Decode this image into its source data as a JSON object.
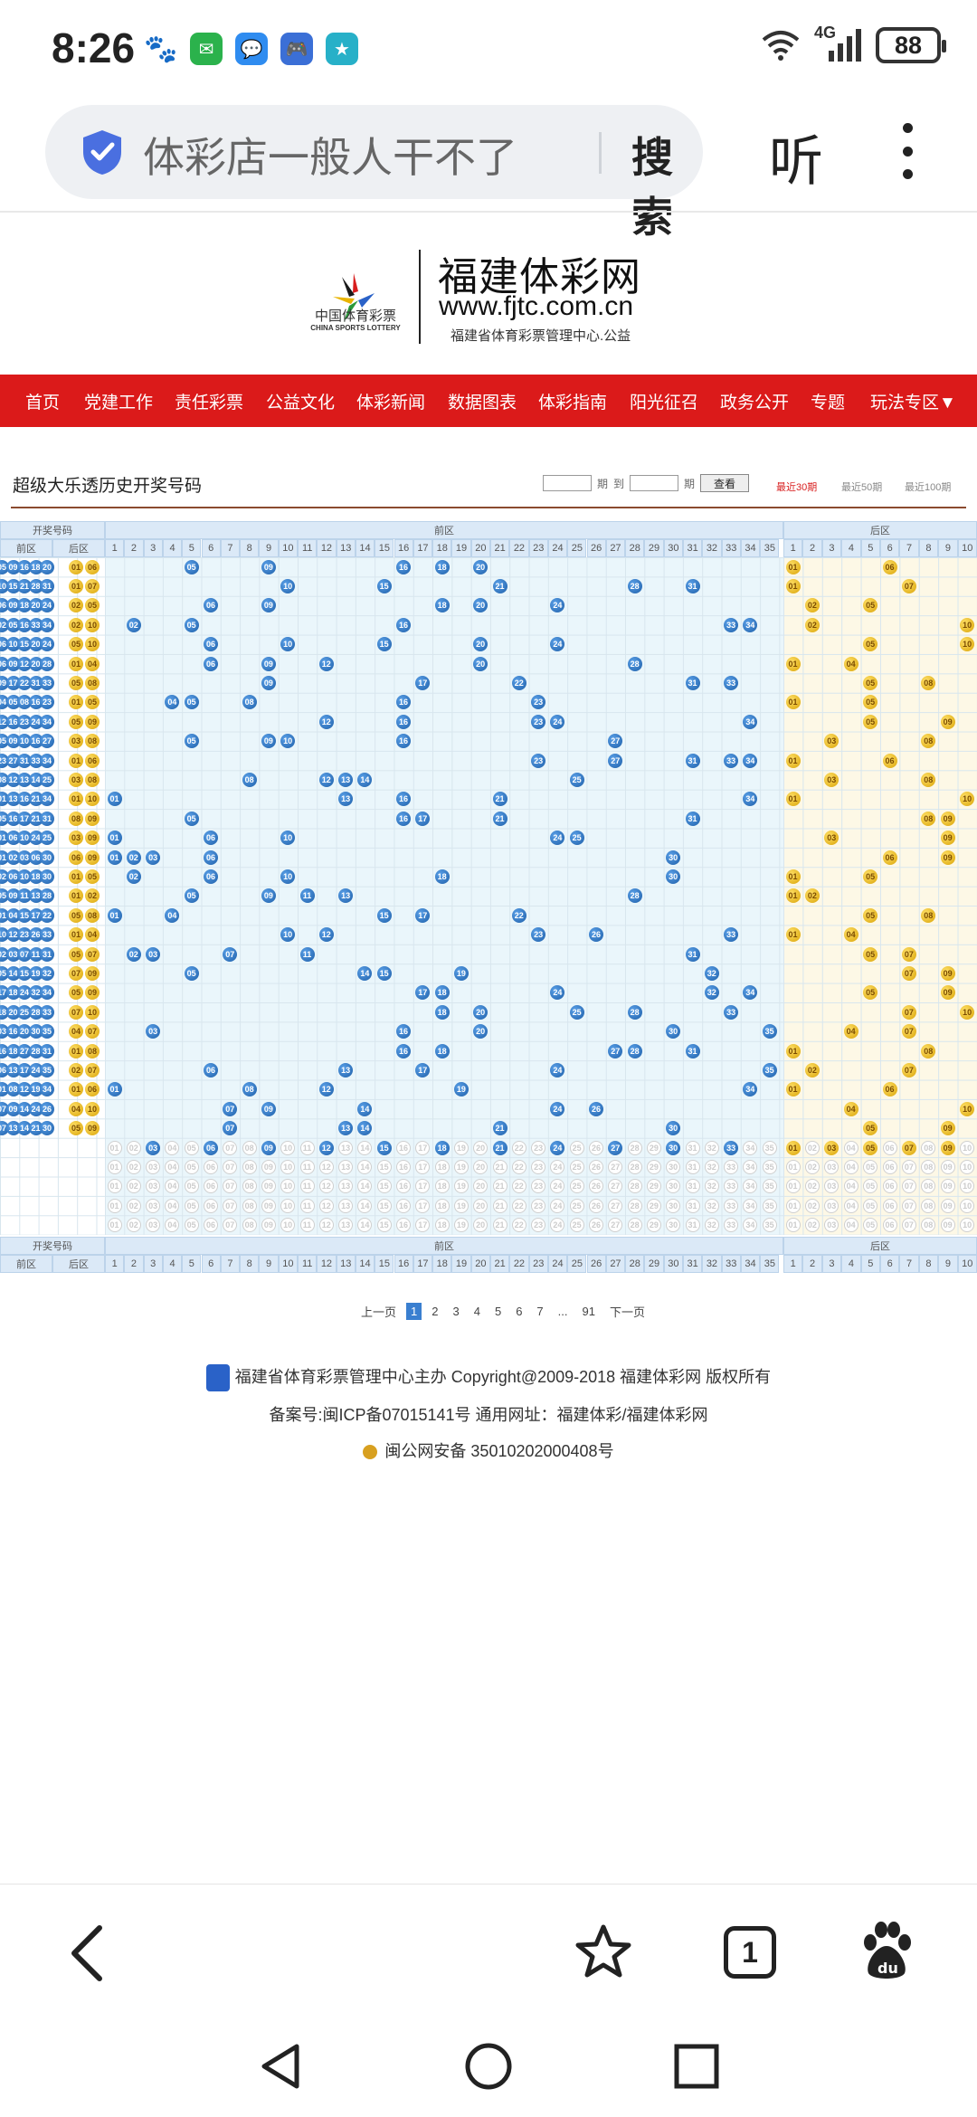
{
  "status": {
    "time": "8:26",
    "network": "4G",
    "battery": "88"
  },
  "browser": {
    "search_text": "体彩店一般人干不了",
    "search_button": "搜索",
    "listen_button": "听"
  },
  "site": {
    "logo_cn": "中国体育彩票",
    "logo_en": "CHINA SPORTS LOTTERY",
    "name": "福建体彩网",
    "url": "www.fjtc.com.cn",
    "subtitle": "福建省体育彩票管理中心.公益"
  },
  "nav": [
    "首页",
    "党建工作",
    "责任彩票",
    "公益文化",
    "体彩新闻",
    "数据图表",
    "体彩指南",
    "阳光征召",
    "政务公开",
    "专题",
    "玩法专区▼"
  ],
  "page": {
    "title": "超级大乐透历史开奖号码",
    "period_label": "期",
    "to_label": "到",
    "query_button": "查看",
    "recent_30": "最近30期",
    "recent_50": "最近50期",
    "recent_100": "最近100期"
  },
  "table": {
    "col_draw": "开奖号码",
    "col_front": "前区",
    "col_back": "后区",
    "sub_front": "前区",
    "sub_back": "后区",
    "front_numbers": [
      "1",
      "2",
      "3",
      "4",
      "5",
      "6",
      "7",
      "8",
      "9",
      "10",
      "11",
      "12",
      "13",
      "14",
      "15",
      "16",
      "17",
      "18",
      "19",
      "20",
      "21",
      "22",
      "23",
      "24",
      "25",
      "26",
      "27",
      "28",
      "29",
      "30",
      "31",
      "32",
      "33",
      "34",
      "35"
    ],
    "back_numbers": [
      "1",
      "2",
      "3",
      "4",
      "5",
      "6",
      "7",
      "8",
      "9",
      "10"
    ]
  },
  "pager": {
    "prev": "上一页",
    "pages": [
      "1",
      "2",
      "3",
      "4",
      "5",
      "6",
      "7"
    ],
    "ellipsis": "...",
    "last": "91",
    "next": "下一页"
  },
  "footer": {
    "line1": "福建省体育彩票管理中心主办 Copyright@2009-2018 福建体彩网 版权所有",
    "line2": "备案号:闽ICP备07015141号    通用网址：福建体彩/福建体彩网",
    "line3": "闽公网安备 35010202000408号"
  },
  "bottom_bar": {
    "tab_count": "1"
  },
  "colors": {
    "nav_red": "#db1a1a",
    "front_bg": "#eaf6fb",
    "back_bg": "#fdf8e6",
    "blue_ball": "#1e5fa8",
    "yellow_ball": "#e0aa0b"
  }
}
